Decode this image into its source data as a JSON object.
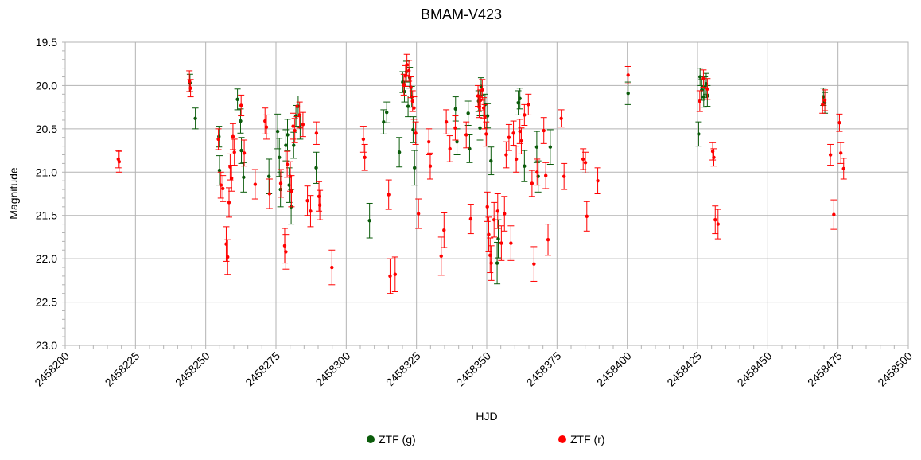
{
  "chart_data": {
    "type": "scatter",
    "title": "BMAM-V423",
    "xlabel": "HJD",
    "ylabel": "Magnitude",
    "xlim": [
      2458200,
      2458500
    ],
    "ylim": [
      23.0,
      19.5
    ],
    "y_inverted": true,
    "grid": true,
    "legend": "bottom",
    "x_ticks": [
      "2458200",
      "2458225",
      "2458250",
      "2458275",
      "2458300",
      "2458325",
      "2458350",
      "2458375",
      "2458400",
      "2458425",
      "2458450",
      "2458475",
      "2458500"
    ],
    "y_ticks": [
      "19.5",
      "20.0",
      "20.5",
      "21.0",
      "21.5",
      "22.0",
      "22.5",
      "23.0"
    ],
    "series": [
      {
        "name": "ZTF (g)",
        "color": "#0b5c0b",
        "points": [
          [
            2458244.4,
            19.97,
            0.1
          ],
          [
            2458246.3,
            20.38,
            0.12
          ],
          [
            2458254.7,
            20.59,
            0.12
          ],
          [
            2458254.9,
            20.98,
            0.17
          ],
          [
            2458261.3,
            20.16,
            0.12
          ],
          [
            2458262.4,
            20.41,
            0.14
          ],
          [
            2458262.7,
            20.75,
            0.15
          ],
          [
            2458263.5,
            21.06,
            0.17
          ],
          [
            2458272.5,
            21.05,
            0.2
          ],
          [
            2458275.6,
            20.53,
            0.2
          ],
          [
            2458276.2,
            20.83,
            0.22
          ],
          [
            2458276.6,
            21.2,
            0.2
          ],
          [
            2458278.5,
            20.69,
            0.18
          ],
          [
            2458279.1,
            20.57,
            0.18
          ],
          [
            2458279.7,
            21.15,
            0.2
          ],
          [
            2458280.4,
            21.4,
            0.2
          ],
          [
            2458281.3,
            20.69,
            0.15
          ],
          [
            2458282.1,
            20.35,
            0.12
          ],
          [
            2458282.9,
            20.24,
            0.12
          ],
          [
            2458283.6,
            20.48,
            0.14
          ],
          [
            2458289.3,
            20.95,
            0.18
          ],
          [
            2458308.3,
            21.56,
            0.2
          ],
          [
            2458313.3,
            20.42,
            0.14
          ],
          [
            2458314.4,
            20.31,
            0.12
          ],
          [
            2458318.9,
            20.77,
            0.17
          ],
          [
            2458320.1,
            19.96,
            0.12
          ],
          [
            2458320.7,
            20.07,
            0.12
          ],
          [
            2458321.4,
            19.84,
            0.12
          ],
          [
            2458322.0,
            20.24,
            0.12
          ],
          [
            2458322.6,
            19.91,
            0.12
          ],
          [
            2458323.3,
            20.13,
            0.12
          ],
          [
            2458323.8,
            20.51,
            0.15
          ],
          [
            2458324.3,
            20.95,
            0.2
          ],
          [
            2458338.9,
            20.27,
            0.14
          ],
          [
            2458339.4,
            20.65,
            0.15
          ],
          [
            2458343.4,
            20.32,
            0.14
          ],
          [
            2458343.9,
            20.73,
            0.16
          ],
          [
            2458347.1,
            20.18,
            0.12
          ],
          [
            2458347.6,
            20.49,
            0.14
          ],
          [
            2458348.0,
            20.01,
            0.1
          ],
          [
            2458349.4,
            20.22,
            0.12
          ],
          [
            2458350.3,
            20.35,
            0.14
          ],
          [
            2458351.5,
            20.87,
            0.16
          ],
          [
            2458353.7,
            22.05,
            0.24
          ],
          [
            2458354.1,
            21.77,
            0.22
          ],
          [
            2458361.2,
            20.2,
            0.14
          ],
          [
            2458361.8,
            20.15,
            0.12
          ],
          [
            2458363.4,
            20.93,
            0.18
          ],
          [
            2458367.8,
            20.71,
            0.18
          ],
          [
            2458368.3,
            21.05,
            0.18
          ],
          [
            2458372.6,
            20.71,
            0.2
          ],
          [
            2458400.3,
            20.09,
            0.13
          ],
          [
            2458425.4,
            20.56,
            0.14
          ],
          [
            2458425.9,
            19.9,
            0.1
          ],
          [
            2458426.5,
            20.05,
            0.12
          ],
          [
            2458427.2,
            20.13,
            0.12
          ],
          [
            2458427.6,
            20.02,
            0.12
          ],
          [
            2458428.1,
            19.98,
            0.12
          ],
          [
            2458428.5,
            20.12,
            0.12
          ],
          [
            2458469.8,
            20.13,
            0.1
          ],
          [
            2458470.3,
            20.2,
            0.12
          ]
        ]
      },
      {
        "name": "ZTF (r)",
        "color": "#ff0000",
        "points": [
          [
            2458218.9,
            20.85,
            0.1
          ],
          [
            2458219.2,
            20.88,
            0.12
          ],
          [
            2458244.2,
            19.95,
            0.12
          ],
          [
            2458244.6,
            20.03,
            0.1
          ],
          [
            2458254.5,
            20.62,
            0.12
          ],
          [
            2458255.4,
            21.15,
            0.15
          ],
          [
            2458256.1,
            21.19,
            0.15
          ],
          [
            2458257.3,
            21.83,
            0.2
          ],
          [
            2458257.8,
            21.98,
            0.2
          ],
          [
            2458258.3,
            21.35,
            0.17
          ],
          [
            2458258.7,
            20.94,
            0.15
          ],
          [
            2458259.2,
            21.07,
            0.15
          ],
          [
            2458259.7,
            20.59,
            0.15
          ],
          [
            2458260.2,
            20.77,
            0.15
          ],
          [
            2458262.6,
            20.23,
            0.12
          ],
          [
            2458263.7,
            20.78,
            0.15
          ],
          [
            2458267.6,
            21.14,
            0.17
          ],
          [
            2458271.1,
            20.41,
            0.15
          ],
          [
            2458271.6,
            20.48,
            0.14
          ],
          [
            2458272.7,
            21.25,
            0.17
          ],
          [
            2458276.7,
            21.13,
            0.16
          ],
          [
            2458278.1,
            21.85,
            0.2
          ],
          [
            2458278.5,
            21.92,
            0.2
          ],
          [
            2458279.0,
            20.91,
            0.15
          ],
          [
            2458280.1,
            21.05,
            0.17
          ],
          [
            2458280.5,
            21.22,
            0.18
          ],
          [
            2458281.1,
            20.47,
            0.15
          ],
          [
            2458281.7,
            20.52,
            0.14
          ],
          [
            2458282.5,
            20.24,
            0.12
          ],
          [
            2458283.4,
            20.34,
            0.15
          ],
          [
            2458284.6,
            20.45,
            0.14
          ],
          [
            2458286.2,
            21.33,
            0.17
          ],
          [
            2458287.3,
            21.45,
            0.18
          ],
          [
            2458289.4,
            20.55,
            0.13
          ],
          [
            2458290.3,
            21.28,
            0.17
          ],
          [
            2458290.6,
            21.38,
            0.17
          ],
          [
            2458294.9,
            22.1,
            0.2
          ],
          [
            2458306.1,
            20.62,
            0.15
          ],
          [
            2458306.6,
            20.83,
            0.15
          ],
          [
            2458315.1,
            21.26,
            0.17
          ],
          [
            2458315.6,
            22.2,
            0.2
          ],
          [
            2458317.4,
            22.18,
            0.2
          ],
          [
            2458320.5,
            19.99,
            0.12
          ],
          [
            2458321.1,
            19.89,
            0.12
          ],
          [
            2458321.6,
            19.76,
            0.12
          ],
          [
            2458322.3,
            19.83,
            0.12
          ],
          [
            2458323.0,
            20.02,
            0.12
          ],
          [
            2458323.6,
            20.18,
            0.12
          ],
          [
            2458324.1,
            20.26,
            0.13
          ],
          [
            2458324.7,
            20.55,
            0.13
          ],
          [
            2458325.7,
            21.48,
            0.17
          ],
          [
            2458329.4,
            20.65,
            0.15
          ],
          [
            2458329.9,
            20.93,
            0.15
          ],
          [
            2458333.8,
            21.97,
            0.22
          ],
          [
            2458334.8,
            21.67,
            0.2
          ],
          [
            2458335.6,
            20.42,
            0.14
          ],
          [
            2458336.9,
            20.73,
            0.15
          ],
          [
            2458338.8,
            20.49,
            0.14
          ],
          [
            2458342.7,
            20.57,
            0.15
          ],
          [
            2458344.3,
            21.54,
            0.17
          ],
          [
            2458346.9,
            20.12,
            0.12
          ],
          [
            2458347.3,
            20.25,
            0.12
          ],
          [
            2458347.8,
            20.17,
            0.12
          ],
          [
            2458348.4,
            20.05,
            0.12
          ],
          [
            2458348.9,
            20.26,
            0.12
          ],
          [
            2458349.3,
            20.36,
            0.14
          ],
          [
            2458349.8,
            20.56,
            0.14
          ],
          [
            2458350.2,
            21.4,
            0.17
          ],
          [
            2458350.7,
            21.72,
            0.2
          ],
          [
            2458351.2,
            21.96,
            0.2
          ],
          [
            2458351.6,
            22.05,
            0.2
          ],
          [
            2458352.6,
            21.55,
            0.2
          ],
          [
            2458353.9,
            21.45,
            0.2
          ],
          [
            2458355.2,
            21.82,
            0.2
          ],
          [
            2458356.3,
            21.48,
            0.2
          ],
          [
            2458356.9,
            20.8,
            0.15
          ],
          [
            2458357.9,
            20.6,
            0.15
          ],
          [
            2458358.6,
            21.82,
            0.2
          ],
          [
            2458359.5,
            20.55,
            0.14
          ],
          [
            2458360.5,
            20.85,
            0.15
          ],
          [
            2458361.8,
            20.53,
            0.14
          ],
          [
            2458362.3,
            20.64,
            0.15
          ],
          [
            2458363.4,
            20.34,
            0.12
          ],
          [
            2458364.8,
            20.22,
            0.12
          ],
          [
            2458366.1,
            21.13,
            0.15
          ],
          [
            2458366.8,
            22.06,
            0.2
          ],
          [
            2458367.9,
            21.0,
            0.15
          ],
          [
            2458370.3,
            20.52,
            0.15
          ],
          [
            2458371.0,
            21.04,
            0.15
          ],
          [
            2458371.8,
            21.78,
            0.18
          ],
          [
            2458376.5,
            20.38,
            0.1
          ],
          [
            2458377.5,
            21.05,
            0.15
          ],
          [
            2458384.3,
            20.85,
            0.12
          ],
          [
            2458385.1,
            20.89,
            0.12
          ],
          [
            2458385.6,
            21.51,
            0.17
          ],
          [
            2458389.5,
            21.1,
            0.15
          ],
          [
            2458400.3,
            19.88,
            0.1
          ],
          [
            2458425.8,
            20.18,
            0.12
          ],
          [
            2458427.1,
            19.92,
            0.1
          ],
          [
            2458428.5,
            20.04,
            0.12
          ],
          [
            2458430.4,
            20.76,
            0.1
          ],
          [
            2458430.8,
            20.83,
            0.1
          ],
          [
            2458431.3,
            21.55,
            0.16
          ],
          [
            2458432.3,
            21.6,
            0.17
          ],
          [
            2458469.5,
            20.22,
            0.1
          ],
          [
            2458470.3,
            20.17,
            0.12
          ],
          [
            2458472.3,
            20.8,
            0.12
          ],
          [
            2458473.5,
            21.49,
            0.17
          ],
          [
            2458475.5,
            20.43,
            0.1
          ],
          [
            2458476.0,
            20.78,
            0.12
          ],
          [
            2458477.0,
            20.96,
            0.12
          ]
        ]
      }
    ]
  }
}
